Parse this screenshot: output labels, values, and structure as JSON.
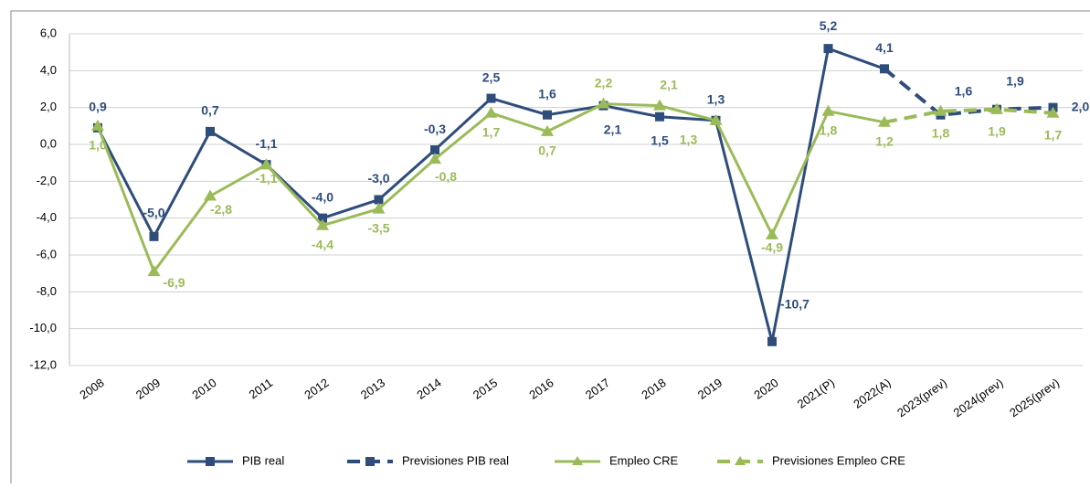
{
  "chart_data": {
    "type": "line",
    "categories": [
      "2008",
      "2009",
      "2010",
      "2011",
      "2012",
      "2013",
      "2014",
      "2015",
      "2016",
      "2017",
      "2018",
      "2019",
      "2020",
      "2021(P)",
      "2022(A)",
      "2023(prev)",
      "2024(prev)",
      "2025(prev)"
    ],
    "ylim": [
      -12,
      6
    ],
    "yticks": [
      {
        "value": -12,
        "label": "-12,0"
      },
      {
        "value": -10,
        "label": "-10,0"
      },
      {
        "value": -8,
        "label": "-8,0"
      },
      {
        "value": -6,
        "label": "-6,0"
      },
      {
        "value": -4,
        "label": "-4,0"
      },
      {
        "value": -2,
        "label": "-2,0"
      },
      {
        "value": 0,
        "label": "0,0"
      },
      {
        "value": 2,
        "label": "2,0"
      },
      {
        "value": 4,
        "label": "4,0"
      },
      {
        "value": 6,
        "label": "6,0"
      }
    ],
    "grid": true,
    "legend": "bottom",
    "series": [
      {
        "name": "PIB real",
        "color": "#2e4d7b",
        "marker": "square",
        "dashed": false,
        "values": [
          0.9,
          -5.0,
          0.7,
          -1.1,
          -4.0,
          -3.0,
          -0.3,
          2.5,
          1.6,
          2.1,
          1.5,
          1.3,
          -10.7,
          5.2,
          4.1,
          null,
          null,
          null
        ],
        "value_labels": [
          "0,9",
          "-5,0",
          "0,7",
          "-1,1",
          "-4,0",
          "-3,0",
          "-0,3",
          "2,5",
          "1,6",
          "2,1",
          "1,5",
          "1,3",
          "-10,7",
          "5,2",
          "4,1",
          null,
          null,
          null
        ]
      },
      {
        "name": "Previsiones PIB real",
        "color": "#2e4d7b",
        "marker": "square",
        "dashed": true,
        "values": [
          null,
          null,
          null,
          null,
          null,
          null,
          null,
          null,
          null,
          null,
          null,
          null,
          null,
          null,
          4.1,
          1.6,
          1.9,
          2.0
        ],
        "value_labels": [
          null,
          null,
          null,
          null,
          null,
          null,
          null,
          null,
          null,
          null,
          null,
          null,
          null,
          null,
          null,
          "1,6",
          "1,9",
          "2,0"
        ]
      },
      {
        "name": "Empleo CRE",
        "color": "#9bbb59",
        "marker": "triangle",
        "dashed": false,
        "values": [
          1.0,
          -6.9,
          -2.8,
          -1.1,
          -4.4,
          -3.5,
          -0.8,
          1.7,
          0.7,
          2.2,
          2.1,
          1.3,
          -4.9,
          1.8,
          1.2,
          null,
          null,
          null
        ],
        "value_labels": [
          "1,0",
          "-6,9",
          "-2,8",
          "-1,1",
          "-4,4",
          "-3,5",
          "-0,8",
          "1,7",
          "0,7",
          "2,2",
          "2,1",
          "1,3",
          "-4,9",
          "1,8",
          "1,2",
          null,
          null,
          null
        ]
      },
      {
        "name": "Previsiones Empleo CRE",
        "color": "#9bbb59",
        "marker": "triangle",
        "dashed": true,
        "values": [
          null,
          null,
          null,
          null,
          null,
          null,
          null,
          null,
          null,
          null,
          null,
          null,
          null,
          null,
          1.2,
          1.8,
          1.9,
          1.7
        ],
        "value_labels": [
          null,
          null,
          null,
          null,
          null,
          null,
          null,
          null,
          null,
          null,
          null,
          null,
          null,
          null,
          null,
          "1,8",
          "1,9",
          "1,7"
        ]
      }
    ]
  }
}
